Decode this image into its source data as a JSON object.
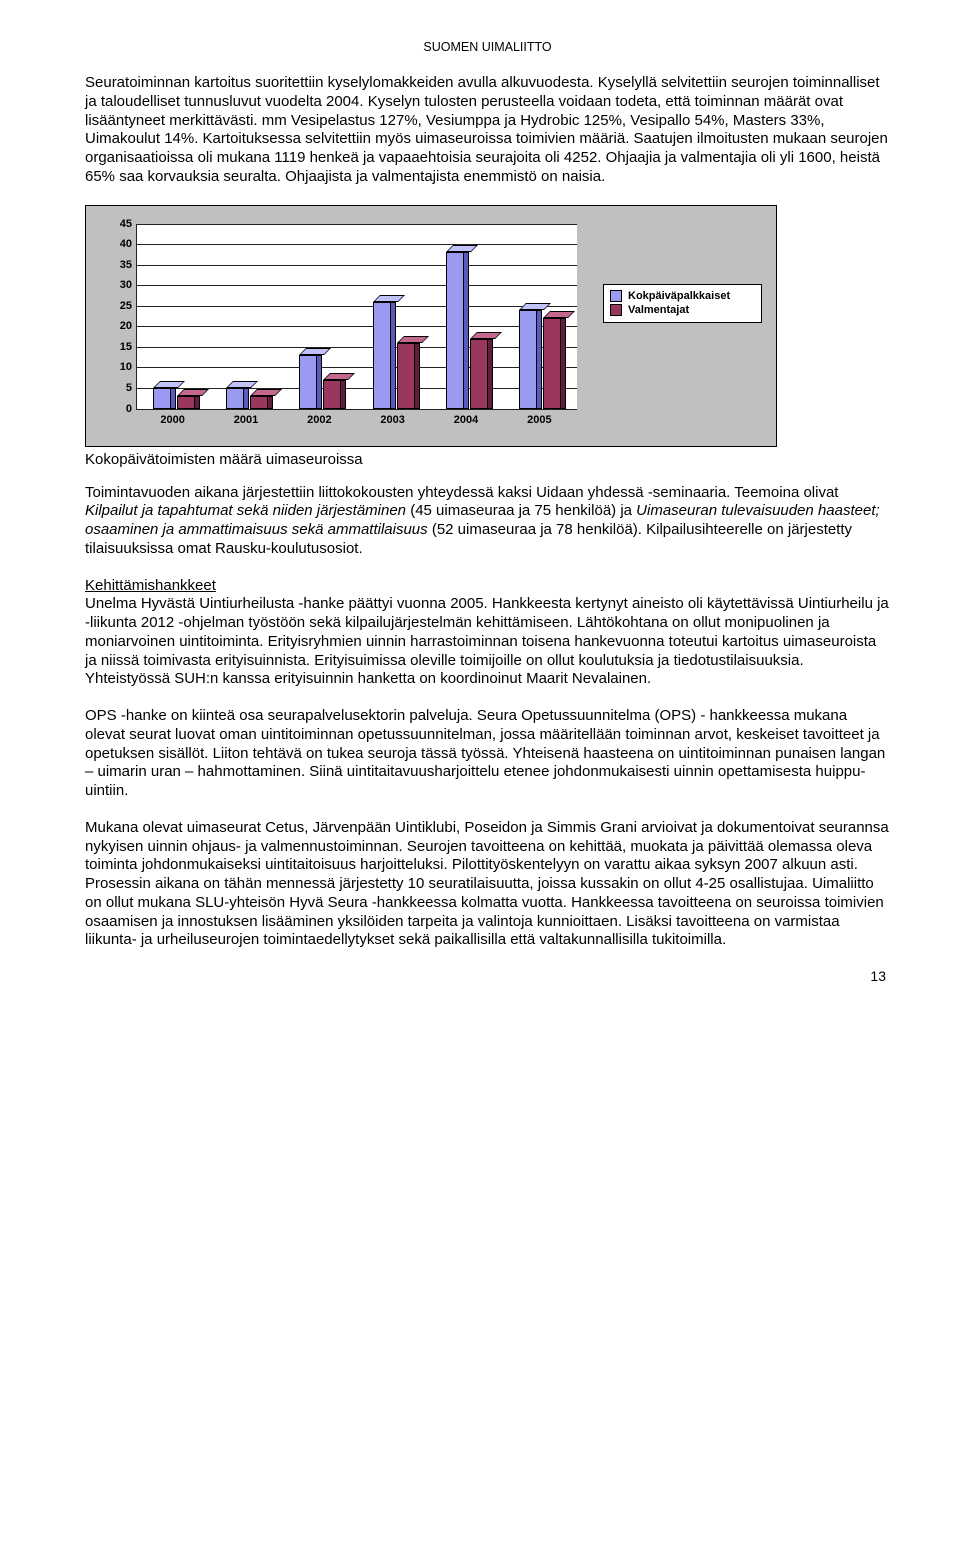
{
  "header": "SUOMEN UIMALIITTO",
  "para1": "Seuratoiminnan kartoitus suoritettiin kyselylomakkeiden avulla alkuvuodesta. Kyselyllä selvitettiin seurojen toiminnalliset ja taloudelliset tunnusluvut vuodelta 2004. Kyselyn tulosten perusteella voidaan todeta, että toiminnan määrät ovat lisääntyneet merkittävästi. mm Vesipelastus 127%, Vesiumppa ja Hydrobic 125%, Vesipallo 54%, Masters 33%, Uimakoulut 14%. Kartoituksessa selvitettiin myös uimaseuroissa toimivien määriä. Saatujen ilmoitusten mukaan seurojen organisaatioissa oli mukana 1119 henkeä ja vapaaehtoisia seurajoita oli 4252. Ohjaajia ja valmentajia oli yli 1600, heistä 65% saa korvauksia seuralta. Ohjaajista ja valmentajista enemmistö on naisia.",
  "chart": {
    "type": "bar",
    "categories": [
      "2000",
      "2001",
      "2002",
      "2003",
      "2004",
      "2005"
    ],
    "series": [
      {
        "label": "Kokpäiväpalkkaiset",
        "color": "#9a9af0",
        "highlight": "#c2c2fb",
        "shadow": "#5a5abf",
        "values": [
          5,
          5,
          13,
          26,
          38,
          24
        ]
      },
      {
        "label": "Valmentajat",
        "color": "#9a375f",
        "highlight": "#c46890",
        "shadow": "#611d3c",
        "values": [
          3,
          3,
          7,
          16,
          17,
          22
        ]
      }
    ],
    "ylim": [
      0,
      45
    ],
    "ytick_step": 5,
    "background_color": "#c0c0c0",
    "plot_color": "#ffffff",
    "grid_color": "#222222",
    "label_fontsize": 11
  },
  "chart_caption": "Kokopäivätoimisten määrä uimaseuroissa",
  "para2_pre": "Toimintavuoden aikana järjestettiin liittokokousten yhteydessä kaksi Uidaan yhdessä -seminaaria. Teemoina olivat ",
  "para2_italic1": "Kilpailut ja tapahtumat sekä niiden järjestäminen",
  "para2_mid": " (45 uimaseuraa ja 75 henkilöä) ja ",
  "para2_italic2": "Uimaseuran tulevaisuuden haasteet; osaaminen ja ammattimaisuus sekä ammattilaisuus",
  "para2_post": " (52 uimaseuraa ja 78 henkilöä). Kilpailusihteerelle on järjestetty tilaisuuksissa omat Rausku-koulutusosiot.",
  "section_heading": "Kehittämishankkeet",
  "para3": "Unelma Hyvästä Uintiurheilusta -hanke päättyi vuonna 2005. Hankkeesta kertynyt aineisto oli käytettävissä Uintiurheilu ja -liikunta 2012 -ohjelman työstöön sekä kilpailujärjestelmän kehittämiseen. Lähtökohtana on ollut monipuolinen ja moniarvoinen uintitoiminta. Erityisryhmien uinnin harrastoiminnan toisena hankevuonna toteutui kartoitus uimaseuroista ja niissä toimivasta erityisuinnista. Erityisuimissa oleville toimijoille on ollut koulutuksia ja tiedotustilaisuuksia. Yhteistyössä SUH:n kanssa erityisuinnin hanketta on koordinoinut Maarit Nevalainen.",
  "para4": "OPS -hanke on kiinteä osa seurapalvelusektorin palveluja. Seura Opetussuunnitelma (OPS) - hankkeessa mukana olevat seurat luovat oman uintitoiminnan opetussuunnitelman, jossa määritellään toiminnan arvot, keskeiset tavoitteet ja opetuksen sisällöt. Liiton tehtävä on tukea seuroja tässä työssä. Yhteisenä haasteena on uintitoiminnan punaisen langan – uimarin uran – hahmottaminen. Siinä uintitaitavuusharjoittelu etenee johdonmukaisesti uinnin opettamisesta huippu-uintiin.",
  "para5": "Mukana olevat uimaseurat Cetus, Järvenpään Uintiklubi, Poseidon ja Simmis Grani arvioivat ja dokumentoivat seurannsa nykyisen uinnin ohjaus- ja valmennustoiminnan. Seurojen tavoitteena on kehittää, muokata ja päivittää olemassa oleva toiminta johdonmukaiseksi uintitaitoisuus harjoitteluksi. Pilottityöskentelyyn on varattu aikaa syksyn 2007 alkuun asti. Prosessin aikana on tähän mennessä järjestetty 10 seuratilaisuutta, joissa kussakin on ollut 4-25 osallistujaa. Uimaliitto on ollut mukana SLU-yhteisön Hyvä Seura -hankkeessa kolmatta vuotta. Hankkeessa tavoitteena on seuroissa toimivien osaamisen ja innostuksen lisääminen yksilöiden tarpeita ja valintoja kunnioittaen. Lisäksi tavoitteena on varmistaa liikunta- ja urheiluseurojen toimintaedellytykset sekä paikallisilla että valtakunnallisilla tukitoimilla.",
  "page_number": "13"
}
